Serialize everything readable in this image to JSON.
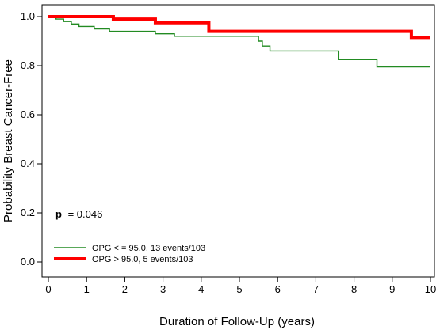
{
  "chart_data": {
    "type": "line",
    "step": true,
    "xlabel": "Duration of Follow-Up (years)",
    "ylabel": "Probability Breast Cancer-Free",
    "xlim": [
      0,
      10
    ],
    "ylim": [
      0,
      1
    ],
    "xticks": [
      "0",
      "1",
      "2",
      "3",
      "4",
      "5",
      "6",
      "7",
      "8",
      "9",
      "10"
    ],
    "yticks": [
      "0.0",
      "0.2",
      "0.4",
      "0.6",
      "0.8",
      "1.0"
    ],
    "grid": false,
    "annotation": {
      "label": "p",
      "value": "= 0.046"
    },
    "legend_position": "bottom-left",
    "series": [
      {
        "name": "OPG < = 95.0, 13 events/103",
        "color": "#228b22",
        "points": [
          [
            0,
            1.0
          ],
          [
            0.2,
            0.99
          ],
          [
            0.4,
            0.98
          ],
          [
            0.6,
            0.97
          ],
          [
            0.8,
            0.96
          ],
          [
            1.2,
            0.95
          ],
          [
            1.6,
            0.94
          ],
          [
            2.8,
            0.93
          ],
          [
            3.3,
            0.92
          ],
          [
            5.5,
            0.9
          ],
          [
            5.6,
            0.88
          ],
          [
            5.8,
            0.86
          ],
          [
            7.6,
            0.825
          ],
          [
            8.6,
            0.795
          ],
          [
            10,
            0.795
          ]
        ]
      },
      {
        "name": "OPG > 95.0, 5 events/103",
        "color": "#ff0000",
        "points": [
          [
            0,
            1.0
          ],
          [
            1.7,
            0.99
          ],
          [
            2.8,
            0.975
          ],
          [
            4.2,
            0.94
          ],
          [
            9.5,
            0.915
          ],
          [
            10,
            0.915
          ]
        ]
      }
    ]
  }
}
